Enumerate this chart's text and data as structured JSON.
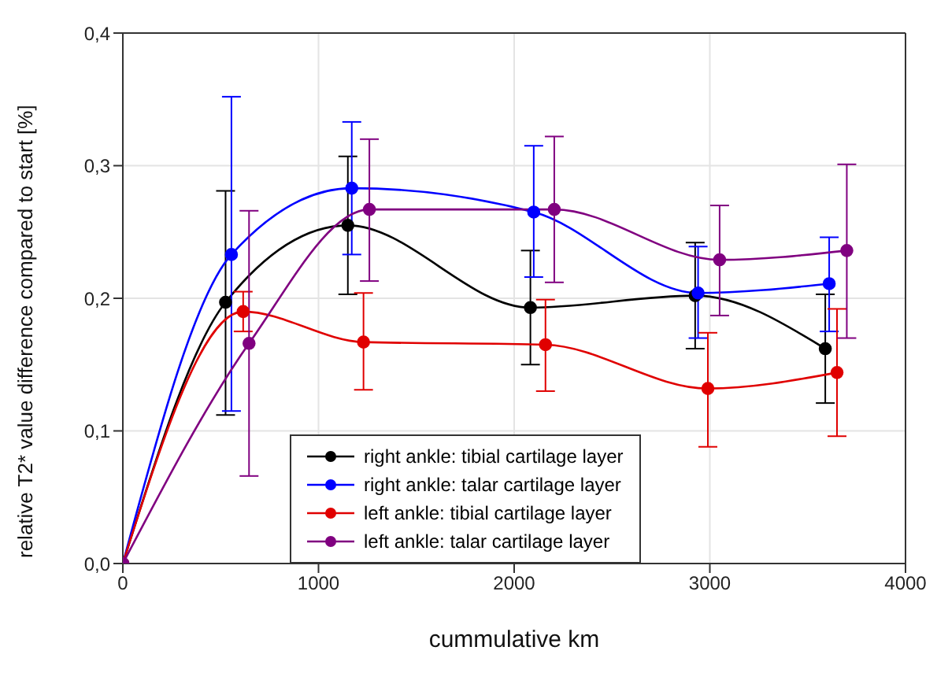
{
  "chart_data": {
    "type": "line",
    "xlabel": "cummulative km",
    "ylabel": "relative T2* value difference compared to start [%]",
    "xlim": [
      0,
      4000
    ],
    "xticks": [
      0,
      1000,
      2000,
      3000,
      4000
    ],
    "ylim": [
      0,
      0.4
    ],
    "yticks": [
      {
        "value": 0,
        "label": "0,0"
      },
      {
        "value": 0.1,
        "label": "0,1"
      },
      {
        "value": 0.2,
        "label": "0,2"
      },
      {
        "value": 0.3,
        "label": "0,3"
      },
      {
        "value": 0.4,
        "label": "0,4"
      }
    ],
    "grid": true,
    "legend": "bottom",
    "marker": "circle",
    "line_style": "solid",
    "series": [
      {
        "name": "right ankle: tibial cartilage layer",
        "color": "#000000",
        "x": [
          0,
          525,
          1150,
          2083,
          2925,
          3590
        ],
        "values": [
          0,
          0.197,
          0.255,
          0.193,
          0.202,
          0.162
        ],
        "errors": [
          null,
          [
            0.112,
            0.281
          ],
          [
            0.203,
            0.307
          ],
          [
            0.15,
            0.236
          ],
          [
            0.162,
            0.242
          ],
          [
            0.121,
            0.203
          ]
        ]
      },
      {
        "name": "right ankle: talar cartilage layer",
        "color": "#0000ff",
        "x": [
          0,
          555,
          1170,
          2100,
          2940,
          3610
        ],
        "values": [
          0,
          0.233,
          0.283,
          0.265,
          0.204,
          0.211
        ],
        "errors": [
          null,
          [
            0.115,
            0.352
          ],
          [
            0.233,
            0.333
          ],
          [
            0.216,
            0.315
          ],
          [
            0.17,
            0.239
          ],
          [
            0.175,
            0.246
          ]
        ]
      },
      {
        "name": "left ankle: tibial cartilage layer",
        "color": "#e00000",
        "x": [
          0,
          615,
          1230,
          2160,
          2990,
          3650
        ],
        "values": [
          0,
          0.19,
          0.167,
          0.165,
          0.132,
          0.144
        ],
        "errors": [
          null,
          [
            0.175,
            0.205
          ],
          [
            0.131,
            0.204
          ],
          [
            0.13,
            0.199
          ],
          [
            0.088,
            0.174
          ],
          [
            0.096,
            0.192
          ]
        ]
      },
      {
        "name": "left ankle: talar cartilage layer",
        "color": "#800080",
        "x": [
          0,
          645,
          1260,
          2205,
          3050,
          3700
        ],
        "values": [
          0,
          0.166,
          0.267,
          0.267,
          0.229,
          0.236
        ],
        "errors": [
          null,
          [
            0.066,
            0.266
          ],
          [
            0.213,
            0.32
          ],
          [
            0.212,
            0.322
          ],
          [
            0.187,
            0.27
          ],
          [
            0.17,
            0.301
          ]
        ]
      }
    ]
  }
}
